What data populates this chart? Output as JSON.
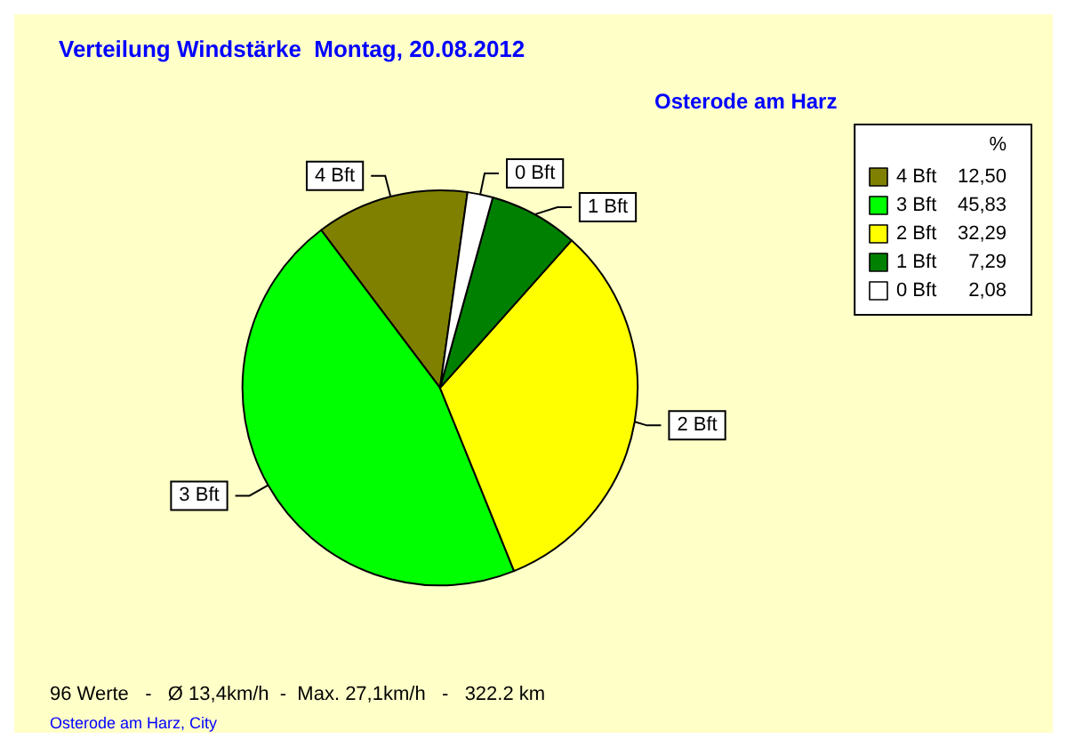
{
  "chart_data": {
    "type": "pie",
    "title": "Verteilung Windstärke  Montag, 20.08.2012",
    "subtitle": "Osterode am Harz",
    "legend_title": "%",
    "legend": "top right",
    "categories": [
      "4 Bft",
      "3 Bft",
      "2 Bft",
      "1 Bft",
      "0 Bft"
    ],
    "values": [
      12.5,
      45.83,
      32.29,
      7.29,
      2.08
    ],
    "value_labels": [
      "12,50",
      "45,83",
      "32,29",
      "7,29",
      "2,08"
    ],
    "colors": [
      "#808000",
      "#00ff00",
      "#ffff00",
      "#008000",
      "#ffffff"
    ],
    "annotations": [
      "96 Werte   -   Ø 13,4km/h  -  Max. 27,1km/h   -   322.2 km",
      "Osterode am Harz, City"
    ]
  }
}
